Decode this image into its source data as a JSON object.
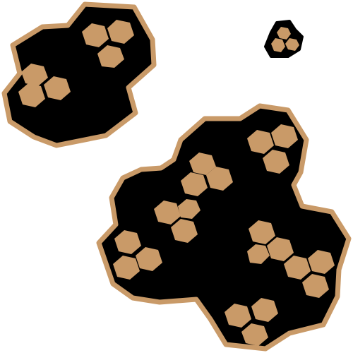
{
  "colors": {
    "background": "#ffffff",
    "fill": "#000000",
    "accent": "#c99a68"
  },
  "image": {
    "subject": "honeycomb-cluster-icon",
    "cluster_count": 3,
    "clusters": [
      {
        "name": "upper-left-cluster",
        "inner_hexagon_count": 6
      },
      {
        "name": "small-upper-right-cluster",
        "inner_hexagon_count": 3
      },
      {
        "name": "large-lower-right-cluster",
        "inner_hexagon_count": 24
      }
    ]
  }
}
